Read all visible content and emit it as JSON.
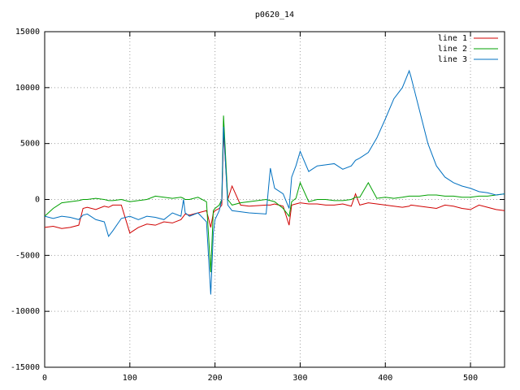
{
  "chart_data": {
    "type": "line",
    "title": "p0620_14",
    "x": [
      0,
      10,
      20,
      30,
      40,
      45,
      50,
      60,
      70,
      75,
      80,
      90,
      100,
      110,
      120,
      130,
      140,
      150,
      160,
      163,
      165,
      170,
      180,
      190,
      195,
      198,
      200,
      205,
      208,
      210,
      215,
      220,
      230,
      240,
      260,
      265,
      270,
      280,
      287,
      290,
      295,
      300,
      310,
      320,
      330,
      340,
      350,
      360,
      365,
      370,
      380,
      390,
      400,
      410,
      420,
      428,
      430,
      440,
      450,
      460,
      470,
      480,
      490,
      500,
      510,
      520,
      530,
      540
    ],
    "series": [
      {
        "name": "line 1",
        "color": "#d00000",
        "values": [
          -2500,
          -2400,
          -2600,
          -2500,
          -2300,
          -800,
          -700,
          -900,
          -600,
          -700,
          -500,
          -500,
          -3000,
          -2500,
          -2200,
          -2300,
          -2000,
          -2100,
          -1800,
          -1500,
          -1300,
          -1400,
          -1200,
          -1000,
          -2500,
          -1200,
          -1000,
          -800,
          -500,
          6000,
          0,
          1200,
          -500,
          -600,
          -500,
          -500,
          -400,
          -600,
          -2300,
          -500,
          -400,
          -300,
          -400,
          -400,
          -500,
          -500,
          -400,
          -600,
          500,
          -500,
          -300,
          -400,
          -500,
          -600,
          -700,
          -600,
          -500,
          -600,
          -700,
          -800,
          -500,
          -600,
          -800,
          -900,
          -500,
          -700,
          -900,
          -1000
        ]
      },
      {
        "name": "line 2",
        "color": "#00a000",
        "values": [
          -1500,
          -800,
          -300,
          -200,
          -100,
          0,
          0,
          100,
          0,
          -100,
          -100,
          0,
          -200,
          -100,
          0,
          300,
          200,
          100,
          200,
          100,
          0,
          0,
          200,
          -200,
          -6500,
          -1000,
          -800,
          -500,
          0,
          7500,
          0,
          -500,
          -300,
          -200,
          0,
          -100,
          -200,
          -800,
          -1500,
          -200,
          100,
          1500,
          -200,
          0,
          0,
          -100,
          -100,
          0,
          200,
          200,
          1500,
          100,
          200,
          100,
          200,
          300,
          300,
          300,
          400,
          400,
          300,
          300,
          200,
          200,
          300,
          300,
          400,
          500
        ]
      },
      {
        "name": "line 3",
        "color": "#0070c0",
        "values": [
          -1500,
          -1700,
          -1500,
          -1600,
          -1800,
          -1400,
          -1300,
          -1800,
          -2000,
          -3300,
          -2800,
          -1700,
          -1500,
          -1800,
          -1500,
          -1600,
          -1800,
          -1200,
          -1500,
          0,
          -1200,
          -1500,
          -1200,
          -2000,
          -8500,
          -3000,
          -1800,
          -1000,
          0,
          6500,
          -500,
          -1000,
          -1100,
          -1200,
          -1300,
          2800,
          1000,
          500,
          -800,
          2000,
          3000,
          4300,
          2500,
          3000,
          3100,
          3200,
          2700,
          3000,
          3500,
          3700,
          4200,
          5500,
          7200,
          9000,
          10000,
          11500,
          11000,
          8000,
          5000,
          3000,
          2000,
          1500,
          1200,
          1000,
          700,
          600,
          400,
          500
        ]
      }
    ],
    "xlim": [
      0,
      540
    ],
    "ylim": [
      -15000,
      15000
    ],
    "xticks": [
      0,
      100,
      200,
      300,
      400,
      500
    ],
    "yticks": [
      -15000,
      -10000,
      -5000,
      0,
      5000,
      10000,
      15000
    ],
    "grid": true,
    "legend": "top-right"
  }
}
